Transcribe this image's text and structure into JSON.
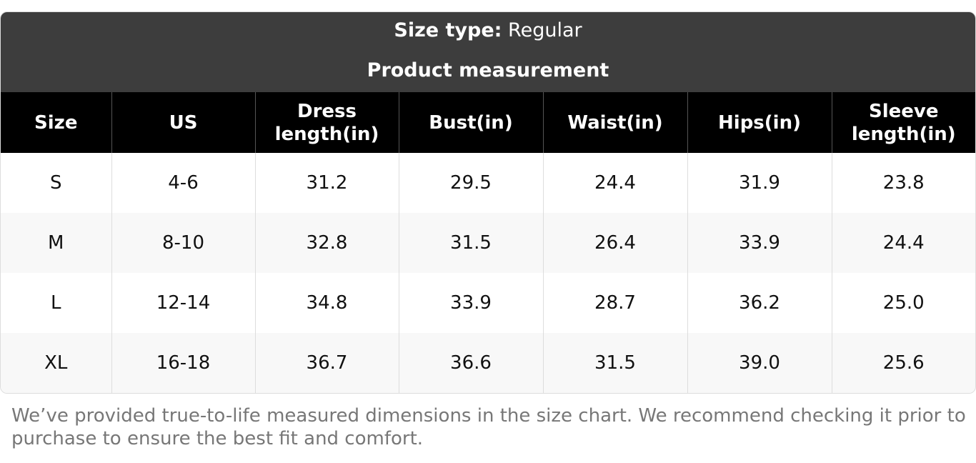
{
  "header": {
    "size_type_label": "Size type:",
    "size_type_value": "Regular",
    "subtitle": "Product measurement"
  },
  "table": {
    "columns": [
      "Size",
      "US",
      "Dress length(in)",
      "Bust(in)",
      "Waist(in)",
      "Hips(in)",
      "Sleeve length(in)"
    ],
    "rows": [
      [
        "S",
        "4-6",
        "31.2",
        "29.5",
        "24.4",
        "31.9",
        "23.8"
      ],
      [
        "M",
        "8-10",
        "32.8",
        "31.5",
        "26.4",
        "33.9",
        "24.4"
      ],
      [
        "L",
        "12-14",
        "34.8",
        "33.9",
        "28.7",
        "36.2",
        "25.0"
      ],
      [
        "XL",
        "16-18",
        "36.7",
        "36.6",
        "31.5",
        "39.0",
        "25.6"
      ]
    ]
  },
  "note": "We’ve provided true-to-life measured dimensions in the size chart. We recommend checking it prior to purchase to ensure the best fit and comfort."
}
